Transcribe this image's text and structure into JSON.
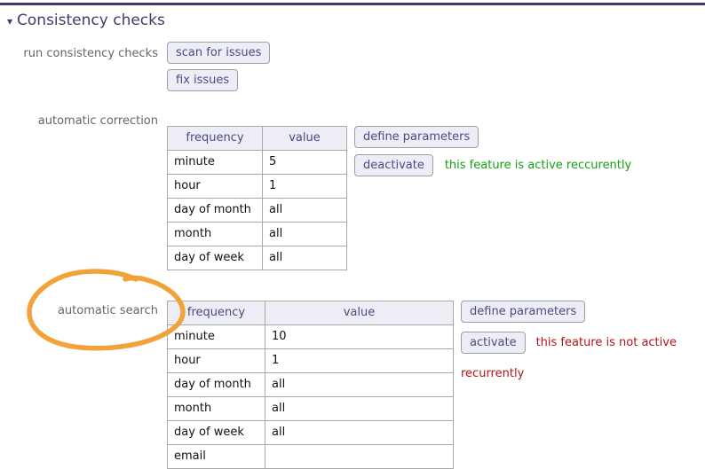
{
  "colors": {
    "accent": "#3c3c6e",
    "active_status": "#12a112",
    "inactive_status": "#b01414",
    "annotation": "#f1a33a"
  },
  "icons": {
    "collapse_arrow": "▾"
  },
  "header": {
    "title": "Consistency checks"
  },
  "run_checks": {
    "label": "run consistency checks",
    "scan_button": "scan for issues",
    "fix_button": "fix issues"
  },
  "auto_correction": {
    "label": "automatic correction",
    "table": {
      "headers": [
        "frequency",
        "value"
      ],
      "rows": [
        [
          "minute",
          "5"
        ],
        [
          "hour",
          "1"
        ],
        [
          "day of month",
          "all"
        ],
        [
          "month",
          "all"
        ],
        [
          "day of week",
          "all"
        ]
      ]
    },
    "define_button": "define parameters",
    "toggle_button": "deactivate",
    "status_text": "this feature is active reccurently"
  },
  "auto_search": {
    "label": "automatic search",
    "table": {
      "headers": [
        "frequency",
        "value"
      ],
      "rows": [
        [
          "minute",
          "10"
        ],
        [
          "hour",
          "1"
        ],
        [
          "day of month",
          "all"
        ],
        [
          "month",
          "all"
        ],
        [
          "day of week",
          "all"
        ],
        [
          "email",
          ""
        ]
      ]
    },
    "define_button": "define parameters",
    "toggle_button": "activate",
    "status_text": "this feature is not active recurrently"
  },
  "annotation": {
    "shape": "hand-drawn-circle around automatic search label"
  }
}
